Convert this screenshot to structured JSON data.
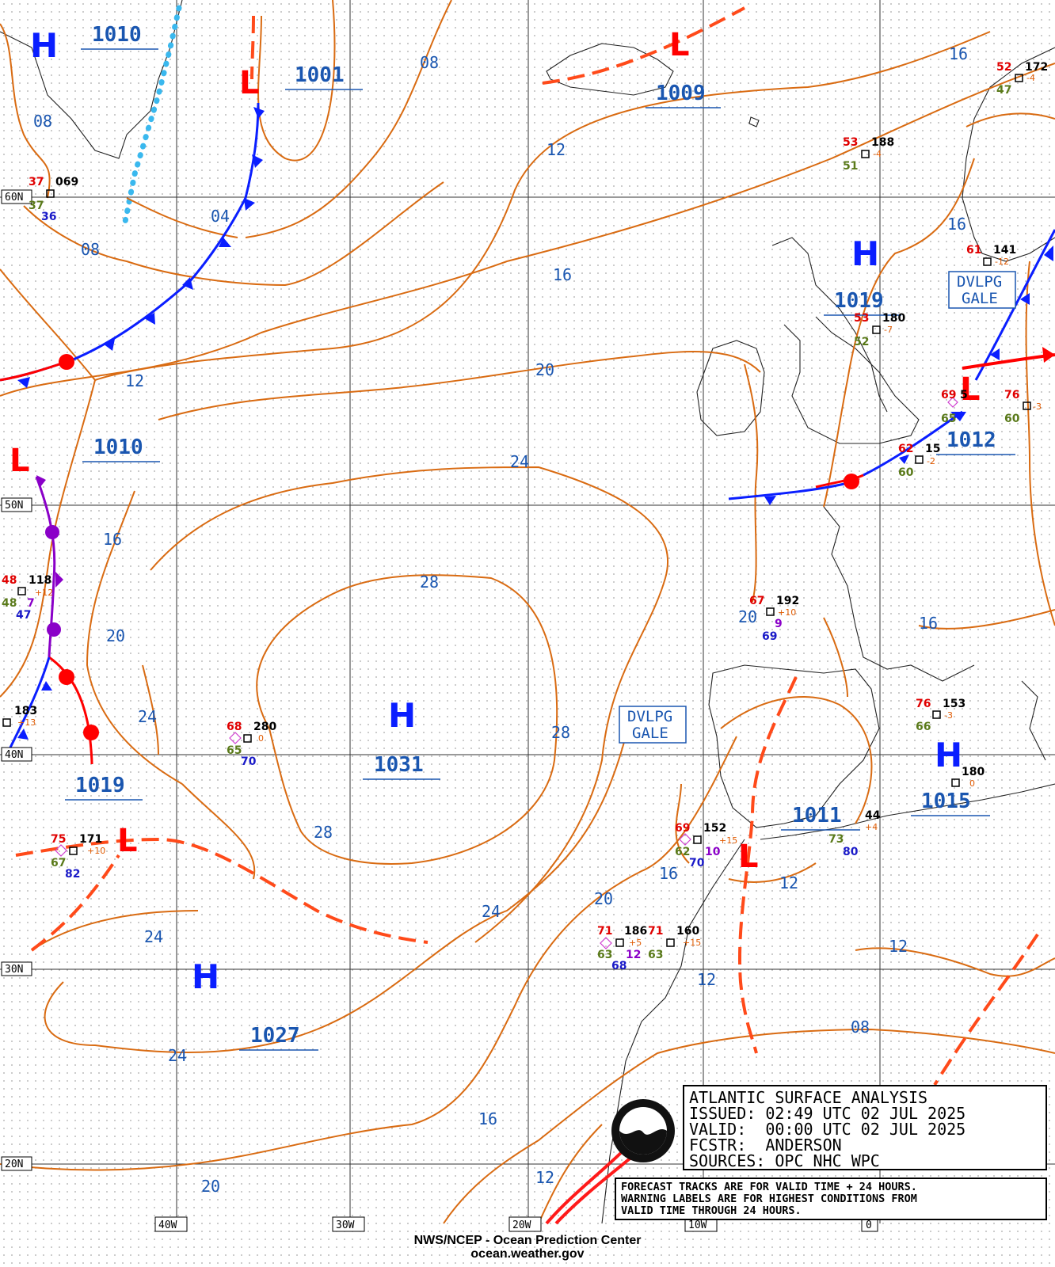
{
  "map": {
    "pressure_labels": [
      "1010",
      "1001",
      "1009",
      "1019",
      "1012",
      "1010",
      "1031",
      "1019",
      "1027",
      "1011",
      "1015"
    ],
    "isobar_labels": [
      "08",
      "08",
      "04",
      "08",
      "12",
      "12",
      "16",
      "16",
      "20",
      "24",
      "28",
      "28",
      "24",
      "20",
      "16",
      "24",
      "20",
      "24",
      "24",
      "28",
      "20",
      "16",
      "16",
      "12",
      "12",
      "12",
      "08",
      "16",
      "12",
      "20",
      "16"
    ],
    "high_symbol": "H",
    "low_symbol": "L",
    "warnings": [
      {
        "line1": "DVLPG",
        "line2": "GALE"
      },
      {
        "line1": "DVLPG",
        "line2": "GALE"
      }
    ],
    "lat_labels": [
      "60N",
      "50N",
      "40N",
      "30N",
      "20N"
    ],
    "lon_labels": [
      "40W",
      "30W",
      "20W",
      "10W",
      "0"
    ]
  },
  "ship_obs": [
    {
      "temp": "37",
      "dew": "37",
      "pres": "069",
      "vis": "36"
    },
    {
      "temp": "53",
      "dew": "51",
      "pres": "188",
      "tend": "-4"
    },
    {
      "temp": "52",
      "dew": "47",
      "pres": "172",
      "tend": "-4"
    },
    {
      "temp": "61",
      "pres": "141",
      "tend": "-12"
    },
    {
      "temp": "53",
      "dew": "52",
      "pres": "180",
      "tend": "-7"
    },
    {
      "temp": "69",
      "dew": "65",
      "pres": "5"
    },
    {
      "temp": "76",
      "dew": "60",
      "tend": "-3"
    },
    {
      "temp": "62",
      "dew": "60",
      "pres": "15",
      "tend": "-2"
    },
    {
      "temp": "48",
      "dew": "48",
      "pres": "118",
      "tend": "+12",
      "vis": "7",
      "sst": "47"
    },
    {
      "temp": "67",
      "pres": "192",
      "tend": "+10",
      "vis": "9",
      "sst": "69"
    },
    {
      "pres": "183",
      "tend": "+13"
    },
    {
      "temp": "68",
      "dew": "65",
      "pres": "280",
      "tend": "0",
      "sst": "70"
    },
    {
      "temp": "76",
      "dew": "66",
      "pres": "153",
      "tend": "-3"
    },
    {
      "pres": "180",
      "tend": "0"
    },
    {
      "temp": "75",
      "dew": "67",
      "pres": "171",
      "tend": "+10",
      "sst": "82"
    },
    {
      "temp": "69",
      "dew": "62",
      "pres": "152",
      "tend": "+15",
      "vis": "10",
      "sst": "70"
    },
    {
      "pres": "44",
      "tend": "+4",
      "dew": "73",
      "sst": "80"
    },
    {
      "temp": "71",
      "dew": "63",
      "pres": "186",
      "tend": "+5",
      "vis": "12",
      "sst": "68"
    },
    {
      "temp": "71",
      "dew": "63",
      "pres": "160",
      "tend": "+15"
    }
  ],
  "info": {
    "title": "ATLANTIC SURFACE ANALYSIS",
    "issued": "ISSUED: 02:49 UTC 02 JUL 2025",
    "valid": "VALID:  00:00 UTC 02 JUL 2025",
    "fcstr": "FCSTR:  ANDERSON",
    "sources": "SOURCES: OPC NHC WPC"
  },
  "note": {
    "line1": "FORECAST TRACKS ARE FOR VALID TIME + 24 HOURS.",
    "line2": "WARNING LABELS ARE FOR HIGHEST CONDITIONS FROM",
    "line3": "VALID TIME THROUGH 24 HOURS."
  },
  "footer": {
    "line1": "NWS/NCEP - Ocean Prediction Center",
    "line2": "ocean.weather.gov"
  },
  "colors": {
    "isobar": "#d96b12",
    "cold_front": "#0a1eff",
    "warm_front": "#ff0000",
    "occluded": "#8a00c8",
    "trough": "#ff4a1a",
    "ice_edge": "#3ab8ee"
  }
}
